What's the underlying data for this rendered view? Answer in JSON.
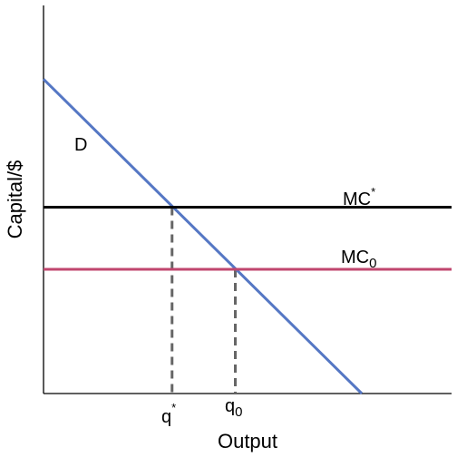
{
  "chart_data": {
    "type": "line",
    "title": "",
    "xlabel": "Output",
    "ylabel": "Capital/$",
    "xlim": [
      0,
      10
    ],
    "ylim": [
      0,
      10
    ],
    "grid": false,
    "ticks_shown": false,
    "colors": {
      "axes": "#000000",
      "demand": "#5577c4",
      "mc_star": "#000000",
      "mc_0": "#c0466e",
      "dropline": "#666666"
    },
    "series": [
      {
        "key": "demand",
        "label": "D",
        "x": [
          0,
          7.8
        ],
        "y": [
          8.1,
          0
        ]
      },
      {
        "key": "mc_star",
        "label_main": "MC",
        "label_sup": "*",
        "x": [
          0,
          10
        ],
        "y": [
          4.8,
          4.8
        ]
      },
      {
        "key": "mc_0",
        "label_main": "MC",
        "label_sub": "0",
        "x": [
          0,
          10
        ],
        "y": [
          3.2,
          3.2
        ]
      }
    ],
    "reference_lines": [
      {
        "key": "q_star",
        "label_main": "q",
        "label_sup": "*",
        "x": 3.15,
        "y_to": 4.8,
        "style": "dashed"
      },
      {
        "key": "q_0",
        "label_main": "q",
        "label_sub": "0",
        "x": 4.7,
        "y_to": 3.2,
        "style": "dashed"
      }
    ]
  }
}
